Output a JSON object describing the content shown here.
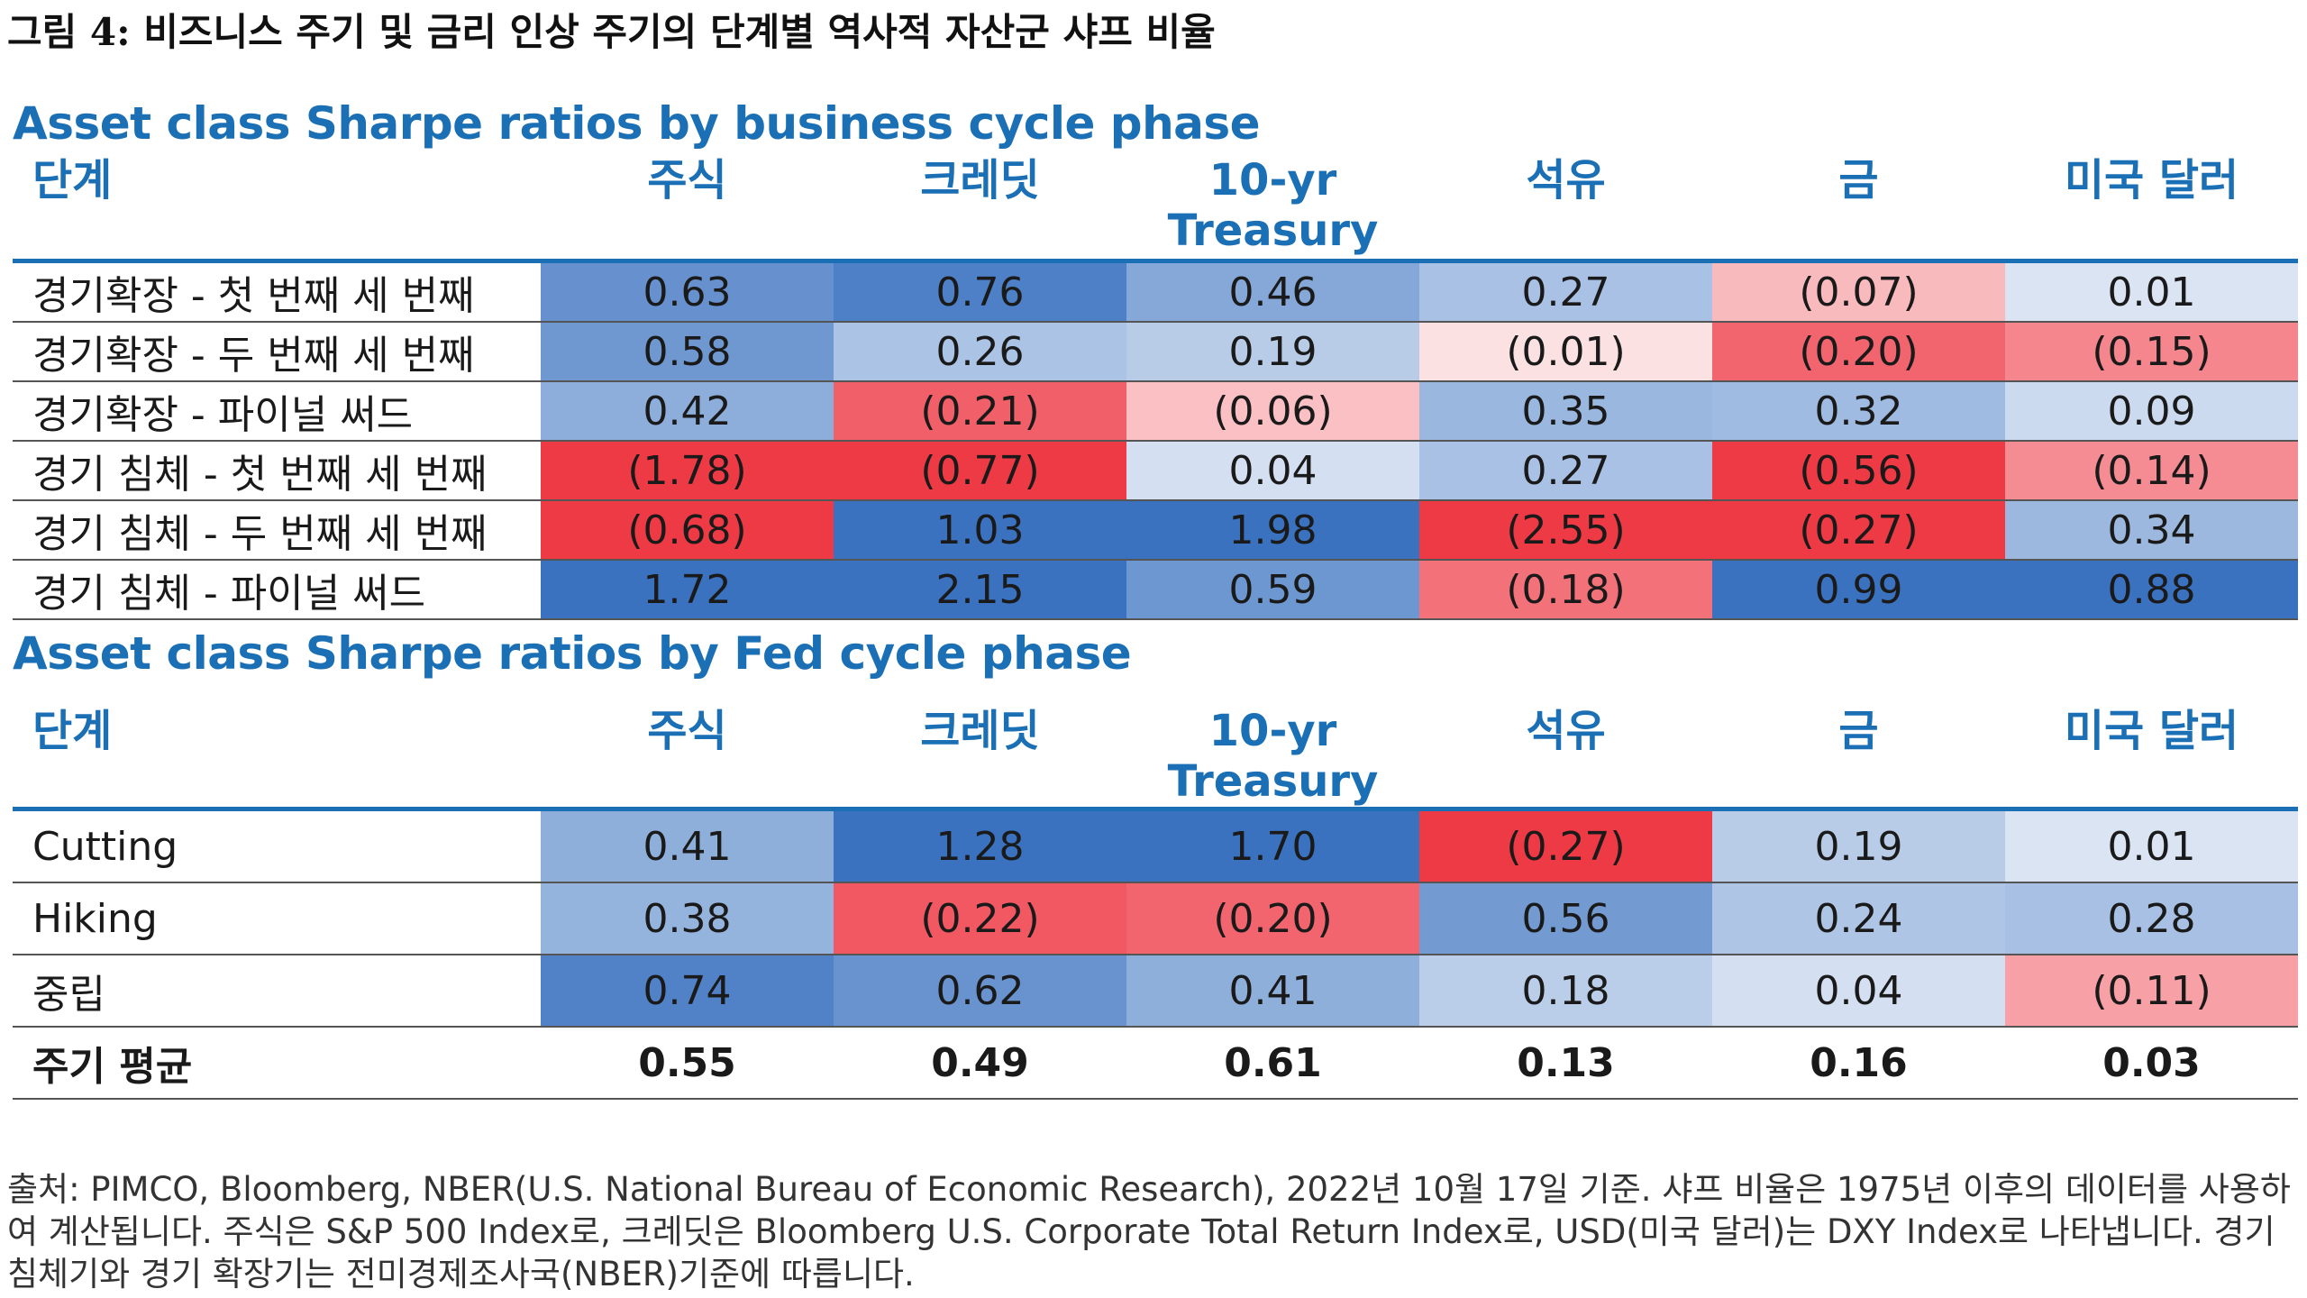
{
  "figure_title": "그림 4: 비즈니스 주기 및 금리 인상 주기의 단계별 역사적 자산군 샤프 비율",
  "columns": {
    "phase": "단계",
    "equities": "주식",
    "credit": "크레딧",
    "treasury_line1": "10-yr",
    "treasury_line2": "Treasury",
    "oil": "석유",
    "gold": "금",
    "usd": "미국 달러"
  },
  "colors": {
    "accent_blue": "#1a6fb5",
    "strong_blue": "#3a72c0",
    "strong_red": "#ee3a45"
  },
  "business_cycle": {
    "title": "Asset class Sharpe ratios by business cycle phase",
    "rows": [
      {
        "label": "경기확장 - 첫 번째 세 번째",
        "values": [
          "0.63",
          "0.76",
          "0.46",
          "0.27",
          "(0.07)",
          "0.01"
        ]
      },
      {
        "label": "경기확장 - 두 번째 세 번째",
        "values": [
          "0.58",
          "0.26",
          "0.19",
          "(0.01)",
          "(0.20)",
          "(0.15)"
        ]
      },
      {
        "label": "경기확장 - 파이널 써드",
        "values": [
          "0.42",
          "(0.21)",
          "(0.06)",
          "0.35",
          "0.32",
          "0.09"
        ]
      },
      {
        "label": "경기 침체 - 첫 번째 세 번째",
        "values": [
          "(1.78)",
          "(0.77)",
          "0.04",
          "0.27",
          "(0.56)",
          "(0.14)"
        ]
      },
      {
        "label": "경기 침체 - 두 번째 세 번째",
        "values": [
          "(0.68)",
          "1.03",
          "1.98",
          "(2.55)",
          "(0.27)",
          "0.34"
        ]
      },
      {
        "label": "경기 침체 - 파이널 써드",
        "values": [
          "1.72",
          "2.15",
          "0.59",
          "(0.18)",
          "0.99",
          "0.88"
        ]
      }
    ]
  },
  "fed_cycle": {
    "title": "Asset class Sharpe ratios by Fed cycle phase",
    "rows": [
      {
        "label": "Cutting",
        "values": [
          "0.41",
          "1.28",
          "1.70",
          "(0.27)",
          "0.19",
          "0.01"
        ]
      },
      {
        "label": "Hiking",
        "values": [
          "0.38",
          "(0.22)",
          "(0.20)",
          "0.56",
          "0.24",
          "0.28"
        ]
      },
      {
        "label": "중립",
        "values": [
          "0.74",
          "0.62",
          "0.41",
          "0.18",
          "0.04",
          "(0.11)"
        ]
      }
    ],
    "average_row": {
      "label": "주기 평균",
      "values": [
        "0.55",
        "0.49",
        "0.61",
        "0.13",
        "0.16",
        "0.03"
      ]
    }
  },
  "source_note": "출처: PIMCO, Bloomberg, NBER(U.S. National Bureau of Economic Research), 2022년 10월 17일 기준. 샤프 비율은 1975년 이후의 데이터를 사용하여 계산됩니다. 주식은 S&P 500 Index로, 크레딧은 Bloomberg U.S. Corporate Total Return Index로, USD(미국 달러)는 DXY Index로 나타냅니다. 경기 침체기와 경기 확장기는 전미경제조사국(NBER)기준에 따릅니다."
}
